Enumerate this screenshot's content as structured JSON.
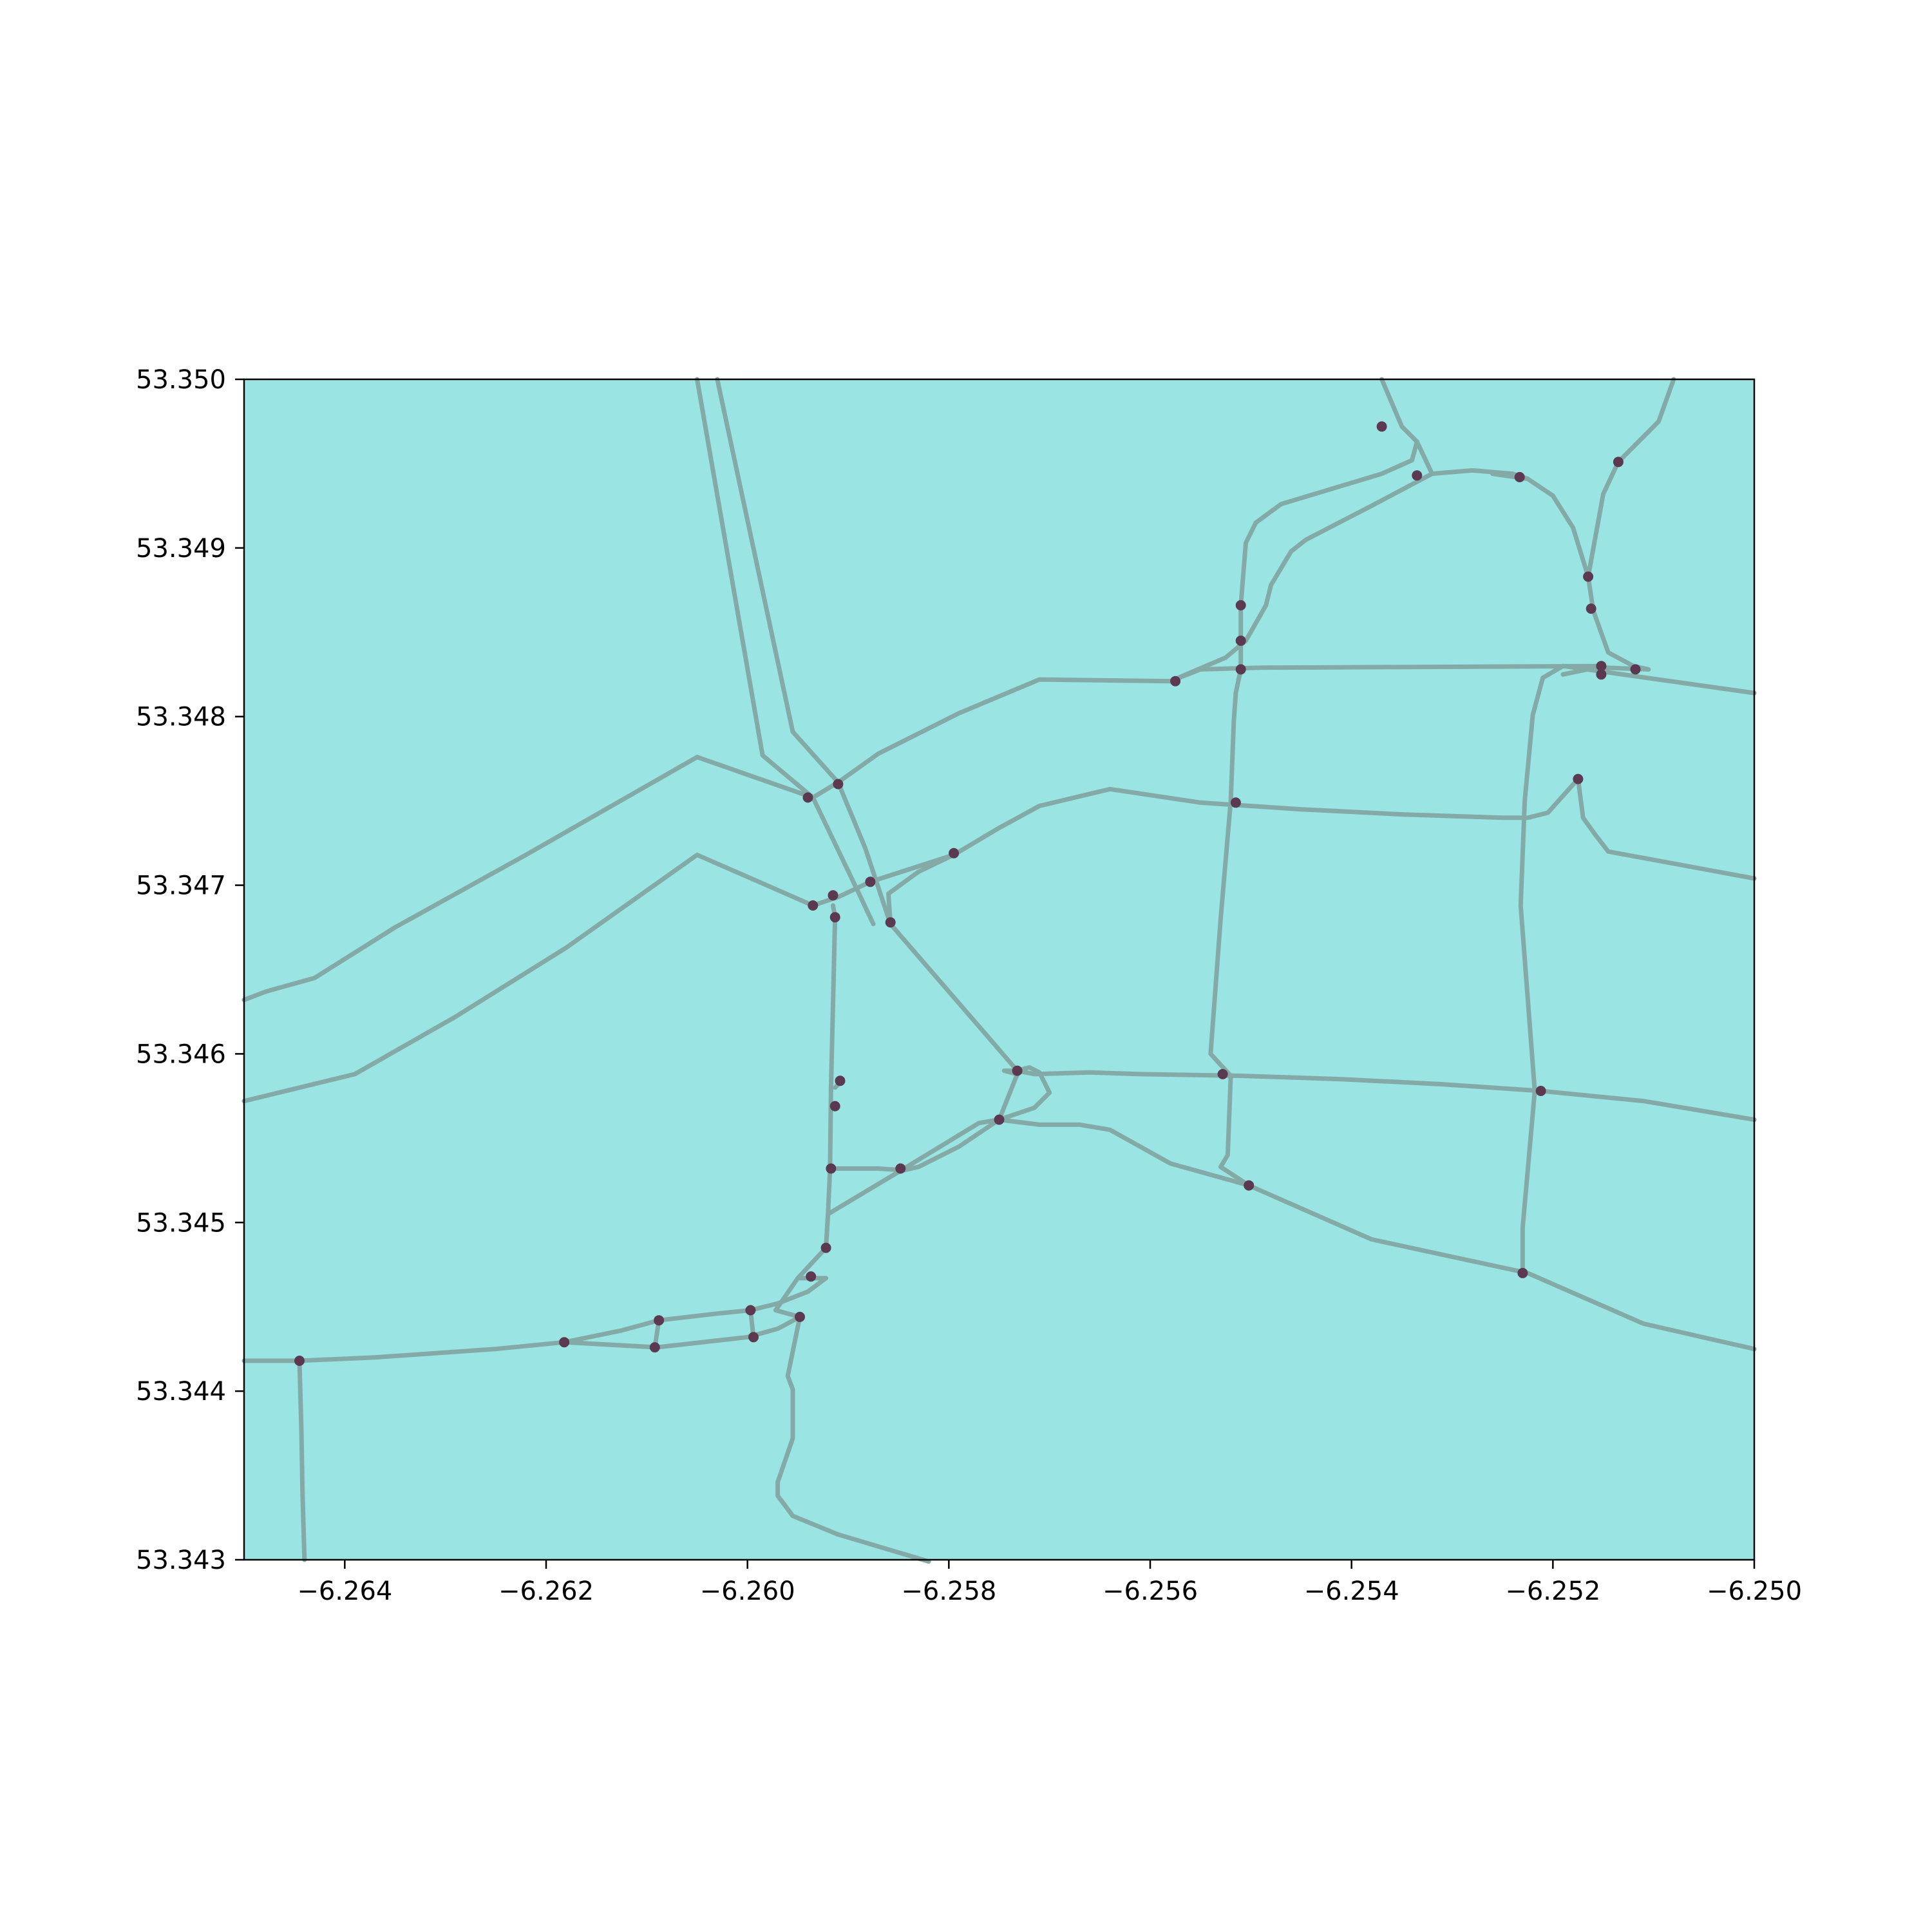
{
  "colors": {
    "background": "#ffffff",
    "area_fill": "#9ae5e3",
    "road_stroke": "#84aaa8",
    "node_fill": "#5b3a51",
    "axis": "#000000"
  },
  "chart_data": {
    "type": "map",
    "xlim": [
      -6.265,
      -6.25
    ],
    "ylim": [
      53.343,
      53.35
    ],
    "x_ticks": [
      {
        "value": -6.264,
        "label": "−6.264"
      },
      {
        "value": -6.262,
        "label": "−6.262"
      },
      {
        "value": -6.26,
        "label": "−6.260"
      },
      {
        "value": -6.258,
        "label": "−6.258"
      },
      {
        "value": -6.256,
        "label": "−6.256"
      },
      {
        "value": -6.254,
        "label": "−6.254"
      },
      {
        "value": -6.252,
        "label": "−6.252"
      },
      {
        "value": -6.25,
        "label": "−6.250"
      }
    ],
    "y_ticks": [
      {
        "value": 53.343,
        "label": "53.343"
      },
      {
        "value": 53.344,
        "label": "53.344"
      },
      {
        "value": 53.345,
        "label": "53.345"
      },
      {
        "value": 53.346,
        "label": "53.346"
      },
      {
        "value": 53.347,
        "label": "53.347"
      },
      {
        "value": 53.348,
        "label": "53.348"
      },
      {
        "value": 53.349,
        "label": "53.349"
      },
      {
        "value": 53.35,
        "label": "53.350"
      }
    ],
    "roads": [
      [
        [
          -6.265,
          53.34632
        ],
        [
          -6.26478,
          53.34637
        ],
        [
          -6.2643,
          53.34645
        ],
        [
          -6.2635,
          53.34675
        ],
        [
          -6.2622,
          53.34718
        ],
        [
          -6.2605,
          53.34776
        ],
        [
          -6.25935,
          53.34752
        ],
        [
          -6.2591,
          53.34761
        ],
        [
          -6.2587,
          53.34778
        ],
        [
          -6.2579,
          53.34802
        ],
        [
          -6.2571,
          53.34822
        ],
        [
          -6.2558,
          53.34821
        ],
        [
          -6.25525,
          53.34835
        ],
        [
          -6.25505,
          53.34845
        ],
        [
          -6.25485,
          53.34866
        ],
        [
          -6.2548,
          53.34878
        ],
        [
          -6.2546,
          53.34898
        ],
        [
          -6.25445,
          53.34905
        ],
        [
          -6.2538,
          53.34925
        ],
        [
          -6.2532,
          53.34944
        ],
        [
          -6.2528,
          53.34946
        ],
        [
          -6.2524,
          53.34944
        ],
        [
          -6.25225,
          53.34941
        ],
        [
          -6.252,
          53.34931
        ],
        [
          -6.2518,
          53.34912
        ],
        [
          -6.25165,
          53.34883
        ]
      ],
      [
        [
          -6.265,
          53.34572
        ],
        [
          -6.2639,
          53.34588
        ],
        [
          -6.2629,
          53.34622
        ],
        [
          -6.2618,
          53.34663
        ],
        [
          -6.2605,
          53.34718
        ],
        [
          -6.25935,
          53.34688
        ],
        [
          -6.2591,
          53.34693
        ],
        [
          -6.25878,
          53.34702
        ],
        [
          -6.25795,
          53.34718
        ],
        [
          -6.2575,
          53.34734
        ],
        [
          -6.2571,
          53.34747
        ],
        [
          -6.2564,
          53.34757
        ],
        [
          -6.2555,
          53.34749
        ],
        [
          -6.2545,
          53.34745
        ],
        [
          -6.2535,
          53.34742
        ],
        [
          -6.2525,
          53.3474
        ],
        [
          -6.25225,
          53.3474
        ],
        [
          -6.25205,
          53.34743
        ],
        [
          -6.25175,
          53.34763
        ]
      ],
      [
        [
          -6.2605,
          53.35
        ],
        [
          -6.25985,
          53.34777
        ],
        [
          -6.25935,
          53.34752
        ],
        [
          -6.2589,
          53.34696
        ],
        [
          -6.25875,
          53.34677
        ]
      ],
      [
        [
          -6.2603,
          53.35
        ],
        [
          -6.25955,
          53.34791
        ],
        [
          -6.2591,
          53.34761
        ],
        [
          -6.25883,
          53.34722
        ],
        [
          -6.25858,
          53.34677
        ],
        [
          -6.25732,
          53.3459
        ]
      ],
      [
        [
          -6.25878,
          53.34702
        ],
        [
          -6.25795,
          53.34718
        ]
      ],
      [
        [
          -6.25858,
          53.34677
        ],
        [
          -6.2586,
          53.34695
        ],
        [
          -6.2583,
          53.34708
        ],
        [
          -6.25795,
          53.34718
        ]
      ],
      [
        [
          -6.25915,
          53.34688
        ],
        [
          -6.25913,
          53.34681
        ],
        [
          -6.25917,
          53.3458
        ],
        [
          -6.25918,
          53.34532
        ],
        [
          -6.2592,
          53.34505
        ],
        [
          -6.25922,
          53.34485
        ],
        [
          -6.2595,
          53.34467
        ],
        [
          -6.25972,
          53.34448
        ],
        [
          -6.25948,
          53.34444
        ],
        [
          -6.2596,
          53.34409
        ],
        [
          -6.25955,
          53.34401
        ],
        [
          -6.25955,
          53.34372
        ],
        [
          -6.2597,
          53.34346
        ],
        [
          -6.2597,
          53.34338
        ],
        [
          -6.25955,
          53.34326
        ],
        [
          -6.2591,
          53.34315
        ],
        [
          -6.2582,
          53.34299
        ]
      ],
      [
        [
          -6.25913,
          53.3458
        ],
        [
          -6.25908,
          53.34583
        ]
      ],
      [
        [
          -6.25917,
          53.34532
        ],
        [
          -6.2587,
          53.34532
        ],
        [
          -6.25845,
          53.34531
        ],
        [
          -6.2583,
          53.34533
        ],
        [
          -6.2579,
          53.34545
        ],
        [
          -6.2575,
          53.34561
        ],
        [
          -6.25732,
          53.34588
        ],
        [
          -6.25745,
          53.3459
        ],
        [
          -6.25732,
          53.3459
        ]
      ],
      [
        [
          -6.25922,
          53.34485
        ],
        [
          -6.2592,
          53.34505
        ],
        [
          -6.2585,
          53.3453
        ],
        [
          -6.2577,
          53.34559
        ],
        [
          -6.2575,
          53.34561
        ]
      ],
      [
        [
          -6.25732,
          53.3459
        ],
        [
          -6.2572,
          53.34592
        ],
        [
          -6.2571,
          53.34589
        ],
        [
          -6.257,
          53.34577
        ],
        [
          -6.25715,
          53.34568
        ],
        [
          -6.2575,
          53.34561
        ],
        [
          -6.2575,
          53.34561
        ]
      ],
      [
        [
          -6.25732,
          53.3459
        ],
        [
          -6.25715,
          53.34588
        ],
        [
          -6.2566,
          53.34589
        ],
        [
          -6.2561,
          53.34588
        ],
        [
          -6.2551,
          53.34587
        ],
        [
          -6.2541,
          53.34585
        ],
        [
          -6.2531,
          53.34582
        ],
        [
          -6.25212,
          53.34578
        ],
        [
          -6.2511,
          53.34572
        ],
        [
          -6.25,
          53.34561
        ]
      ],
      [
        [
          -6.2575,
          53.34561
        ],
        [
          -6.2571,
          53.34558
        ],
        [
          -6.2567,
          53.34558
        ],
        [
          -6.2564,
          53.34555
        ],
        [
          -6.2558,
          53.34535
        ],
        [
          -6.2552,
          53.34525
        ],
        [
          -6.25502,
          53.34522
        ],
        [
          -6.2538,
          53.3449
        ],
        [
          -6.25225,
          53.3447
        ],
        [
          -6.2511,
          53.3444
        ],
        [
          -6.25,
          53.34425
        ]
      ],
      [
        [
          -6.265,
          53.34418
        ],
        [
          -6.26445,
          53.34418
        ],
        [
          -6.2637,
          53.3442
        ],
        [
          -6.2625,
          53.34425
        ],
        [
          -6.26182,
          53.34429
        ],
        [
          -6.2609,
          53.34426
        ],
        [
          -6.26,
          53.34432
        ],
        [
          -6.2597,
          53.34437
        ],
        [
          -6.25948,
          53.34444
        ]
      ],
      [
        [
          -6.26182,
          53.34429
        ],
        [
          -6.26125,
          53.34436
        ],
        [
          -6.26088,
          53.34442
        ],
        [
          -6.2603,
          53.34446
        ],
        [
          -6.25997,
          53.34448
        ],
        [
          -6.2597,
          53.34452
        ],
        [
          -6.2594,
          53.34459
        ],
        [
          -6.25922,
          53.34467
        ],
        [
          -6.25948,
          53.34467
        ]
      ],
      [
        [
          -6.26088,
          53.34442
        ],
        [
          -6.26092,
          53.34426
        ]
      ],
      [
        [
          -6.25997,
          53.34448
        ],
        [
          -6.25994,
          53.34432
        ]
      ],
      [
        [
          -6.26445,
          53.34418
        ],
        [
          -6.26443,
          53.34375
        ],
        [
          -6.26442,
          53.3434
        ],
        [
          -6.2644,
          53.343
        ]
      ],
      [
        [
          -6.2537,
          53.35
        ],
        [
          -6.2535,
          53.34972
        ],
        [
          -6.25335,
          53.34963
        ],
        [
          -6.2534,
          53.34952
        ],
        [
          -6.2537,
          53.34944
        ],
        [
          -6.2547,
          53.34926
        ],
        [
          -6.25495,
          53.34915
        ],
        [
          -6.25505,
          53.34903
        ],
        [
          -6.2551,
          53.34866
        ],
        [
          -6.2551,
          53.34846
        ],
        [
          -6.2551,
          53.34828
        ],
        [
          -6.25515,
          53.34814
        ],
        [
          -6.25517,
          53.34797
        ],
        [
          -6.2552,
          53.3475
        ],
        [
          -6.2553,
          53.3468
        ],
        [
          -6.2554,
          53.346
        ],
        [
          -6.2552,
          53.34587
        ],
        [
          -6.25523,
          53.3454
        ],
        [
          -6.2553,
          53.34533
        ],
        [
          -6.25502,
          53.34522
        ]
      ],
      [
        [
          -6.25335,
          53.34963
        ],
        [
          -6.2532,
          53.34944
        ]
      ],
      [
        [
          -6.2508,
          53.35
        ],
        [
          -6.25095,
          53.34975
        ],
        [
          -6.25135,
          53.34951
        ],
        [
          -6.2515,
          53.34932
        ],
        [
          -6.25165,
          53.34883
        ],
        [
          -6.2516,
          53.34863
        ],
        [
          -6.25145,
          53.34838
        ],
        [
          -6.2512,
          53.3483
        ],
        [
          -6.25105,
          53.34828
        ],
        [
          -6.2519,
          53.3483
        ],
        [
          -6.2521,
          53.34823
        ],
        [
          -6.2522,
          53.34801
        ],
        [
          -6.25228,
          53.3475
        ],
        [
          -6.25232,
          53.34688
        ],
        [
          -6.25218,
          53.34578
        ],
        [
          -6.2523,
          53.34497
        ],
        [
          -6.2523,
          53.3447
        ]
      ],
      [
        [
          -6.25175,
          53.34763
        ],
        [
          -6.2517,
          53.3474
        ],
        [
          -6.25158,
          53.3473
        ],
        [
          -6.25145,
          53.3472
        ],
        [
          -6.25,
          53.34704
        ]
      ],
      [
        [
          -6.2519,
          53.3483
        ],
        [
          -6.25,
          53.34814
        ]
      ],
      [
        [
          -6.2519,
          53.34825
        ],
        [
          -6.2515,
          53.3483
        ],
        [
          -6.2549,
          53.34829
        ],
        [
          -6.2555,
          53.34828
        ],
        [
          -6.2558,
          53.34821
        ]
      ],
      [
        [
          -6.25225,
          53.34941
        ],
        [
          -6.2526,
          53.34944
        ]
      ]
    ],
    "nodes": [
      [
        -6.26445,
        53.34418
      ],
      [
        -6.26182,
        53.34429
      ],
      [
        -6.26088,
        53.34442
      ],
      [
        -6.26092,
        53.34426
      ],
      [
        -6.25997,
        53.34448
      ],
      [
        -6.25994,
        53.34432
      ],
      [
        -6.25948,
        53.34444
      ],
      [
        -6.25937,
        53.34468
      ],
      [
        -6.25922,
        53.34485
      ],
      [
        -6.25917,
        53.34532
      ],
      [
        -6.25848,
        53.34532
      ],
      [
        -6.25913,
        53.34569
      ],
      [
        -6.25908,
        53.34584
      ],
      [
        -6.25913,
        53.34681
      ],
      [
        -6.25915,
        53.34694
      ],
      [
        -6.25935,
        53.34688
      ],
      [
        -6.2594,
        53.34752
      ],
      [
        -6.2591,
        53.3476
      ],
      [
        -6.25878,
        53.34702
      ],
      [
        -6.25858,
        53.34678
      ],
      [
        -6.25795,
        53.34719
      ],
      [
        -6.2575,
        53.34561
      ],
      [
        -6.25732,
        53.3459
      ],
      [
        -6.25575,
        53.34821
      ],
      [
        -6.2551,
        53.34828
      ],
      [
        -6.2551,
        53.34845
      ],
      [
        -6.2551,
        53.34866
      ],
      [
        -6.25515,
        53.34749
      ],
      [
        -6.25528,
        53.34588
      ],
      [
        -6.25502,
        53.34522
      ],
      [
        -6.2537,
        53.34972
      ],
      [
        -6.25335,
        53.34943
      ],
      [
        -6.25233,
        53.34942
      ],
      [
        -6.25135,
        53.34951
      ],
      [
        -6.25165,
        53.34883
      ],
      [
        -6.25162,
        53.34864
      ],
      [
        -6.25152,
        53.3483
      ],
      [
        -6.25152,
        53.34825
      ],
      [
        -6.25118,
        53.34828
      ],
      [
        -6.25175,
        53.34763
      ],
      [
        -6.25212,
        53.34578
      ],
      [
        -6.2523,
        53.3447
      ]
    ]
  }
}
